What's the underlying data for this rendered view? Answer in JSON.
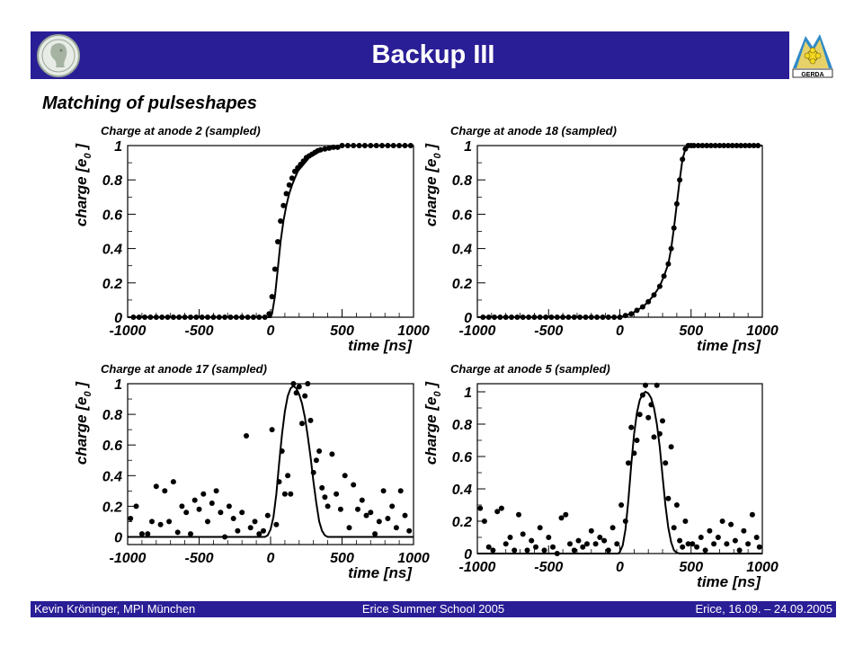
{
  "slide": {
    "title": "Backup III",
    "subtitle": "Matching of pulseshapes",
    "logo_left": "max-planck-logo",
    "logo_right": "gerda-logo",
    "logo_right_text": "GERDA"
  },
  "footer": {
    "left": "Kevin Kröninger, MPI München",
    "center": "Erice Summer School 2005",
    "right": "Erice, 16.09. – 24.09.2005"
  },
  "colors": {
    "bar": "#2a1e96",
    "text_on_bar": "#ffffff",
    "data": "#000000"
  },
  "chart_data": [
    {
      "type": "scatter",
      "title": "Charge at anode 2 (sampled)",
      "xlabel": "time [ns]",
      "ylabel": "charge [e_0]",
      "ylabel_main": "charge [e",
      "ylabel_sub": "0",
      "ylabel_end": "]",
      "xlim": [
        -1000,
        1000
      ],
      "ylim": [
        0,
        1.0
      ],
      "xticks": [
        -1000,
        -500,
        0,
        500,
        1000
      ],
      "xtick_labels": [
        "-1000",
        "-500",
        "0",
        "500",
        "1000"
      ],
      "yticks": [
        0,
        0.2,
        0.4,
        0.6,
        0.8,
        1
      ],
      "ytick_labels": [
        "0",
        "0.2",
        "0.4",
        "0.6",
        "0.8",
        "1"
      ],
      "series": [
        {
          "kind": "points",
          "x": [
            -960,
            -920,
            -880,
            -840,
            -800,
            -760,
            -720,
            -680,
            -640,
            -600,
            -560,
            -520,
            -480,
            -440,
            -400,
            -360,
            -320,
            -280,
            -240,
            -200,
            -160,
            -120,
            -80,
            -40,
            -10,
            10,
            30,
            50,
            70,
            90,
            110,
            130,
            150,
            170,
            190,
            210,
            230,
            250,
            270,
            290,
            310,
            330,
            350,
            380,
            410,
            440,
            470,
            500,
            540,
            580,
            620,
            660,
            700,
            740,
            780,
            820,
            860,
            900,
            940,
            980
          ],
          "y": [
            0,
            0,
            0,
            0,
            0,
            0,
            0,
            0,
            0,
            0,
            0,
            0,
            0,
            0,
            0,
            0,
            0,
            0,
            0,
            0,
            0,
            0,
            0,
            0,
            0.02,
            0.12,
            0.28,
            0.44,
            0.56,
            0.65,
            0.72,
            0.77,
            0.81,
            0.85,
            0.87,
            0.89,
            0.91,
            0.93,
            0.94,
            0.95,
            0.96,
            0.97,
            0.975,
            0.98,
            0.985,
            0.99,
            0.99,
            1,
            1,
            1,
            1,
            1,
            1,
            1,
            1,
            1,
            1,
            1,
            1,
            1
          ]
        },
        {
          "kind": "curve",
          "x": [
            -1000,
            0,
            10,
            30,
            50,
            70,
            90,
            110,
            130,
            150,
            170,
            190,
            210,
            230,
            250,
            270,
            290,
            310,
            330,
            350,
            380,
            410,
            440,
            470,
            500,
            600,
            1000
          ],
          "y": [
            0,
            0,
            0.02,
            0.12,
            0.28,
            0.44,
            0.56,
            0.65,
            0.72,
            0.77,
            0.81,
            0.85,
            0.87,
            0.89,
            0.91,
            0.93,
            0.94,
            0.95,
            0.96,
            0.97,
            0.975,
            0.98,
            0.985,
            0.99,
            1,
            1,
            1
          ]
        }
      ]
    },
    {
      "type": "scatter",
      "title": "Charge at anode 18 (sampled)",
      "xlabel": "time [ns]",
      "ylabel": "charge [e_0]",
      "ylabel_main": "charge [e",
      "ylabel_sub": "0",
      "ylabel_end": "]",
      "xlim": [
        -1000,
        1000
      ],
      "ylim": [
        0,
        1.0
      ],
      "xticks": [
        -1000,
        -500,
        0,
        500,
        1000
      ],
      "xtick_labels": [
        "-1000",
        "-500",
        "0",
        "500",
        "1000"
      ],
      "yticks": [
        0,
        0.2,
        0.4,
        0.6,
        0.8,
        1
      ],
      "ytick_labels": [
        "0",
        "0.2",
        "0.4",
        "0.6",
        "0.8",
        "1"
      ],
      "series": [
        {
          "kind": "points",
          "x": [
            -960,
            -920,
            -880,
            -840,
            -800,
            -760,
            -720,
            -680,
            -640,
            -600,
            -560,
            -520,
            -480,
            -440,
            -400,
            -360,
            -320,
            -280,
            -240,
            -200,
            -160,
            -120,
            -80,
            -40,
            0,
            40,
            80,
            120,
            160,
            200,
            240,
            280,
            310,
            340,
            360,
            380,
            400,
            420,
            440,
            460,
            480,
            500,
            520,
            550,
            580,
            610,
            640,
            670,
            700,
            730,
            760,
            790,
            820,
            850,
            880,
            910,
            940,
            970
          ],
          "y": [
            0,
            0,
            0,
            0,
            0,
            0,
            0,
            0,
            0,
            0,
            0,
            0,
            0,
            0,
            0,
            0,
            0,
            0,
            0,
            0,
            0,
            0,
            0,
            0,
            0,
            0.01,
            0.02,
            0.04,
            0.06,
            0.09,
            0.13,
            0.18,
            0.24,
            0.31,
            0.4,
            0.52,
            0.66,
            0.8,
            0.92,
            0.98,
            1,
            1,
            1,
            1,
            1,
            1,
            1,
            1,
            1,
            1,
            1,
            1,
            1,
            1,
            1,
            1,
            1,
            1
          ]
        },
        {
          "kind": "curve",
          "x": [
            -1000,
            0,
            40,
            80,
            120,
            160,
            200,
            240,
            280,
            310,
            340,
            360,
            380,
            400,
            420,
            440,
            460,
            480,
            500,
            1000
          ],
          "y": [
            0,
            0,
            0.01,
            0.02,
            0.04,
            0.06,
            0.09,
            0.13,
            0.18,
            0.24,
            0.31,
            0.4,
            0.52,
            0.66,
            0.8,
            0.92,
            0.98,
            1,
            1,
            1
          ]
        }
      ]
    },
    {
      "type": "scatter",
      "title": "Charge at anode 17 (sampled)",
      "xlabel": "time [ns]",
      "ylabel": "charge [e_0]",
      "ylabel_main": "charge [e",
      "ylabel_sub": "0",
      "ylabel_end": "]",
      "xlim": [
        -1000,
        1000
      ],
      "ylim": [
        -0.05,
        1.0
      ],
      "xticks": [
        -1000,
        -500,
        0,
        500,
        1000
      ],
      "xtick_labels": [
        "-1000",
        "-500",
        "0",
        "500",
        "1000"
      ],
      "yticks": [
        0,
        0.2,
        0.4,
        0.6,
        0.8,
        1
      ],
      "ytick_labels": [
        "0",
        "0.2",
        "0.4",
        "0.6",
        "0.8",
        "1"
      ],
      "series": [
        {
          "kind": "points",
          "x": [
            -980,
            -940,
            -900,
            -860,
            -830,
            -800,
            -770,
            -740,
            -710,
            -680,
            -650,
            -620,
            -590,
            -560,
            -530,
            -500,
            -470,
            -440,
            -410,
            -380,
            -350,
            -320,
            -290,
            -260,
            -230,
            -200,
            -170,
            -140,
            -110,
            -80,
            -50,
            -20,
            10,
            40,
            60,
            80,
            100,
            120,
            140,
            160,
            180,
            200,
            220,
            240,
            260,
            280,
            300,
            320,
            340,
            360,
            380,
            400,
            430,
            460,
            490,
            520,
            550,
            580,
            610,
            640,
            670,
            700,
            730,
            760,
            790,
            820,
            850,
            880,
            910,
            940,
            970
          ],
          "y": [
            0.12,
            0.2,
            0.02,
            0.02,
            0.1,
            0.33,
            0.08,
            0.3,
            0.1,
            0.36,
            0.03,
            0.2,
            0.16,
            0.02,
            0.24,
            0.18,
            0.28,
            0.1,
            0.22,
            0.3,
            0.16,
            0.0,
            0.2,
            0.12,
            0.04,
            0.16,
            0.66,
            0.06,
            0.1,
            0.02,
            0.04,
            0.14,
            0.7,
            0.08,
            0.36,
            0.56,
            0.28,
            0.4,
            0.28,
            1.0,
            0.94,
            0.98,
            0.74,
            0.92,
            1.0,
            0.76,
            0.42,
            0.5,
            0.56,
            0.32,
            0.26,
            0.2,
            0.54,
            0.28,
            0.18,
            0.4,
            0.06,
            0.34,
            0.18,
            0.24,
            0.14,
            0.16,
            0.02,
            0.1,
            0.3,
            0.12,
            0.2,
            0.06,
            0.3,
            0.14,
            0.04
          ]
        },
        {
          "kind": "curve",
          "x": [
            -1000,
            -40,
            -20,
            0,
            20,
            40,
            60,
            80,
            100,
            120,
            140,
            160,
            180,
            200,
            220,
            240,
            260,
            280,
            300,
            320,
            340,
            360,
            380,
            400,
            440,
            1000
          ],
          "y": [
            0,
            0,
            0.01,
            0.05,
            0.13,
            0.28,
            0.48,
            0.67,
            0.82,
            0.92,
            0.97,
            0.985,
            0.97,
            0.93,
            0.87,
            0.78,
            0.66,
            0.52,
            0.36,
            0.22,
            0.1,
            0.04,
            0.01,
            0,
            0,
            0
          ]
        }
      ]
    },
    {
      "type": "scatter",
      "title": "Charge at anode 5 (sampled)",
      "xlabel": "time [ns]",
      "ylabel": "charge [e_0]",
      "ylabel_main": "charge [e",
      "ylabel_sub": "0",
      "ylabel_end": "]",
      "xlim": [
        -1000,
        1000
      ],
      "ylim": [
        0,
        1.05
      ],
      "xticks": [
        -1000,
        -500,
        0,
        500,
        1000
      ],
      "xtick_labels": [
        "-1000",
        "-500",
        "0",
        "500",
        "1000"
      ],
      "yticks": [
        0,
        0.2,
        0.4,
        0.6,
        0.8,
        1
      ],
      "ytick_labels": [
        "0",
        "0.2",
        "0.4",
        "0.6",
        "0.8",
        "1"
      ],
      "series": [
        {
          "kind": "points",
          "x": [
            -980,
            -950,
            -920,
            -890,
            -860,
            -830,
            -800,
            -770,
            -740,
            -710,
            -680,
            -650,
            -620,
            -590,
            -560,
            -530,
            -500,
            -470,
            -440,
            -410,
            -380,
            -350,
            -320,
            -290,
            -260,
            -230,
            -200,
            -170,
            -140,
            -110,
            -80,
            -50,
            -20,
            10,
            40,
            60,
            80,
            100,
            120,
            140,
            160,
            180,
            200,
            220,
            240,
            260,
            280,
            300,
            320,
            340,
            360,
            380,
            400,
            420,
            440,
            460,
            480,
            510,
            540,
            570,
            600,
            630,
            660,
            690,
            720,
            750,
            780,
            810,
            840,
            870,
            900,
            930,
            960,
            980
          ],
          "y": [
            0.28,
            0.2,
            0.04,
            0.02,
            0.26,
            0.28,
            0.06,
            0.1,
            0.02,
            0.24,
            0.12,
            0.02,
            0.08,
            0.04,
            0.16,
            0.02,
            0.1,
            0.04,
            0.0,
            0.22,
            0.24,
            0.06,
            0.02,
            0.08,
            0.04,
            0.06,
            0.14,
            0.06,
            0.1,
            0.08,
            0.02,
            0.16,
            0.06,
            0.3,
            0.2,
            0.56,
            0.78,
            0.62,
            0.7,
            0.86,
            0.98,
            1.04,
            0.84,
            0.92,
            0.72,
            1.04,
            0.74,
            0.82,
            0.56,
            0.34,
            0.66,
            0.16,
            0.3,
            0.08,
            0.04,
            0.2,
            0.06,
            0.06,
            0.04,
            0.1,
            0.02,
            0.14,
            0.06,
            0.1,
            0.2,
            0.06,
            0.18,
            0.08,
            0.02,
            0.14,
            0.06,
            0.24,
            0.1,
            0.04
          ]
        },
        {
          "kind": "curve",
          "x": [
            -1000,
            -10,
            0,
            20,
            40,
            60,
            80,
            100,
            120,
            140,
            160,
            180,
            200,
            220,
            240,
            260,
            280,
            300,
            320,
            340,
            360,
            380,
            400,
            420,
            440,
            1000
          ],
          "y": [
            0,
            0,
            0.01,
            0.05,
            0.15,
            0.33,
            0.55,
            0.74,
            0.87,
            0.95,
            0.985,
            1.0,
            0.99,
            0.96,
            0.9,
            0.8,
            0.66,
            0.48,
            0.3,
            0.16,
            0.07,
            0.02,
            0.005,
            0,
            0,
            0
          ]
        }
      ]
    }
  ]
}
